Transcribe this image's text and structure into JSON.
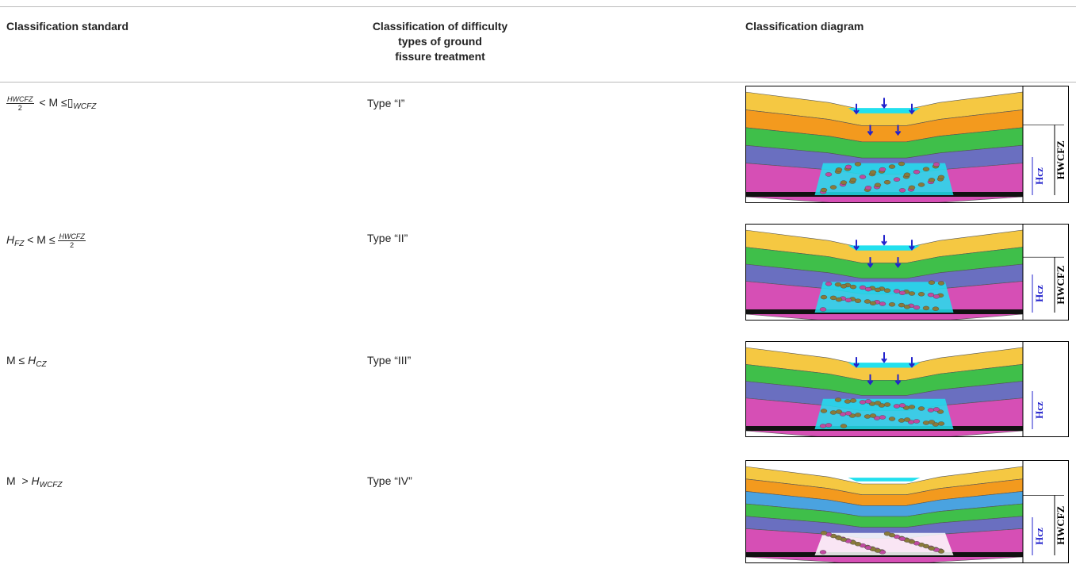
{
  "header": {
    "standard": "Classification standard",
    "type": [
      "Classification of difficulty",
      "types of ground",
      "fissure treatment"
    ],
    "diagram": "Classification diagram"
  },
  "rows": [
    {
      "standard": {
        "num_var": "H",
        "num_sub": "WCFZ",
        "den": "2",
        "op": "< M ≤",
        "var": "▯",
        "sub": "WCFZ"
      },
      "type": "Type “I”",
      "diagram": {
        "hcz": "Hcz",
        "hwcfz": "HWCFZ"
      }
    },
    {
      "standard": {
        "var": "H",
        "sub": "FZ",
        "op": "< M ≤",
        "num_var": "H",
        "num_sub": "WCFZ",
        "den": "2"
      },
      "type": "Type “II”",
      "diagram": {
        "hcz": "Hcz",
        "hwcfz": "HWCFZ"
      }
    },
    {
      "standard": {
        "op": "M ≤",
        "var": "H",
        "sub": "CZ"
      },
      "type": "Type “III”",
      "diagram": {
        "hcz": "Hcz"
      }
    },
    {
      "standard": {
        "op": "M  >",
        "var": "H",
        "sub": "WCFZ"
      },
      "type": "Type “IV”",
      "diagram": {
        "hcz": "Hcz",
        "hwcfz": "HWCFZ"
      }
    }
  ]
}
